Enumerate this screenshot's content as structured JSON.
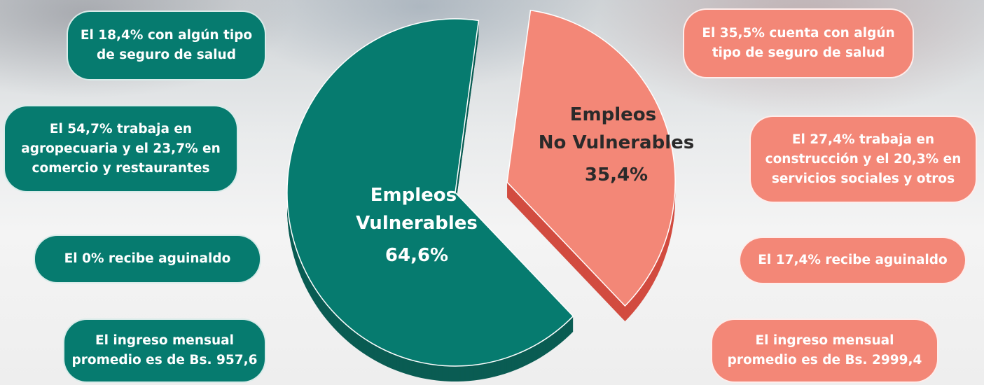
{
  "chart_data": {
    "type": "pie",
    "categories": [
      "Empleos Vulnerables",
      "Empleos No Vulnerables"
    ],
    "values": [
      64.6,
      35.4
    ],
    "value_labels": [
      "64,6%",
      "35,4%"
    ],
    "colors": [
      "#067b6f",
      "#f38777"
    ],
    "annotations": [
      {
        "lines": [
          "El 18,4% con algún tipo",
          "de seguro de salud"
        ]
      },
      {
        "lines": [
          "El 54,7% trabaja en",
          "agropecuaria y el 23,7% en",
          "comercio y restaurantes"
        ]
      },
      {
        "lines": [
          "El 0% recibe aguinaldo"
        ]
      },
      {
        "lines": [
          "El ingreso mensual",
          "promedio es de Bs. 957,6"
        ]
      },
      {
        "lines": [
          "El 35,5% cuenta con algún",
          "tipo de seguro de salud"
        ]
      },
      {
        "lines": [
          "El 27,4% trabaja en",
          "construcción y el 20,3% en",
          "servicios sociales y otros"
        ]
      },
      {
        "lines": [
          "El 17,4% recibe aguinaldo"
        ]
      },
      {
        "lines": [
          "El ingreso mensual",
          "promedio es de Bs. 2999,4"
        ]
      }
    ]
  }
}
